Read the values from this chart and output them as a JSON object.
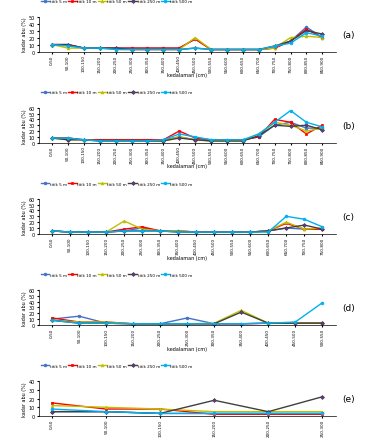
{
  "legend_labels": [
    "titik 5 m",
    "titik 10 m",
    "titik 50 m",
    "titik 250 m",
    "titik 500 m"
  ],
  "line_colors": [
    "#4472C4",
    "#FF0000",
    "#BFBF00",
    "#7030A0",
    "#00B0F0"
  ],
  "markers": [
    "o",
    "s",
    "^",
    "D",
    "o"
  ],
  "xlabel": "kedalaman (cm)",
  "ylabel": "kadar abu (%)",
  "panel_labels": [
    "(a)",
    "(b)",
    "(c)",
    "(d)",
    "(e)"
  ],
  "subplot_a": {
    "x_labels": [
      "0-50",
      "50-100",
      "100-150",
      "150-200",
      "200-250",
      "250-300",
      "300-350",
      "350-400",
      "400-450",
      "450-500",
      "500-550",
      "550-600",
      "600-650",
      "650-700",
      "700-750",
      "750-800",
      "800-850",
      "850-900"
    ],
    "ylim": [
      0,
      50
    ],
    "yticks": [
      0,
      10,
      20,
      30,
      40,
      50
    ],
    "series": {
      "titik5": [
        10,
        10,
        5,
        5,
        5,
        5,
        5,
        5,
        5,
        18,
        3,
        3,
        3,
        3,
        5,
        15,
        35,
        20
      ],
      "titik10": [
        10,
        10,
        5,
        5,
        5,
        5,
        5,
        5,
        5,
        18,
        3,
        3,
        3,
        3,
        5,
        15,
        32,
        20
      ],
      "titik50": [
        10,
        5,
        5,
        5,
        3,
        3,
        3,
        3,
        3,
        20,
        3,
        3,
        3,
        3,
        5,
        20,
        22,
        20
      ],
      "titik250": [
        10,
        10,
        5,
        5,
        5,
        3,
        3,
        3,
        3,
        5,
        3,
        3,
        3,
        3,
        8,
        15,
        30,
        25
      ],
      "titik500": [
        10,
        8,
        5,
        5,
        3,
        3,
        3,
        3,
        3,
        5,
        3,
        3,
        3,
        3,
        8,
        12,
        27,
        22
      ]
    }
  },
  "subplot_b": {
    "x_labels": [
      "0-50",
      "50-100",
      "100-150",
      "150-200",
      "200-250",
      "250-300",
      "300-350",
      "350-400",
      "400-450",
      "450-500",
      "500-550",
      "550-600",
      "600-650",
      "650-700",
      "700-750",
      "750-800",
      "800-850",
      "850-900"
    ],
    "ylim": [
      0,
      60
    ],
    "yticks": [
      0,
      10,
      20,
      30,
      40,
      50,
      60
    ],
    "series": {
      "titik5": [
        8,
        8,
        5,
        5,
        5,
        5,
        5,
        5,
        10,
        5,
        5,
        5,
        5,
        10,
        30,
        35,
        25,
        25
      ],
      "titik10": [
        8,
        8,
        5,
        5,
        5,
        5,
        5,
        5,
        20,
        8,
        5,
        5,
        5,
        10,
        40,
        35,
        15,
        30
      ],
      "titik50": [
        8,
        5,
        5,
        3,
        3,
        3,
        3,
        3,
        10,
        5,
        3,
        3,
        3,
        15,
        35,
        30,
        20,
        25
      ],
      "titik250": [
        8,
        5,
        5,
        3,
        3,
        3,
        3,
        3,
        8,
        5,
        3,
        3,
        3,
        12,
        30,
        28,
        30,
        22
      ],
      "titik500": [
        8,
        8,
        5,
        3,
        3,
        3,
        3,
        5,
        15,
        10,
        5,
        5,
        5,
        15,
        35,
        55,
        35,
        27
      ]
    }
  },
  "subplot_c": {
    "x_labels": [
      "0-50",
      "50-100",
      "100-150",
      "150-200",
      "200-250",
      "250-300",
      "300-350",
      "350-400",
      "400-450",
      "450-500",
      "500-550",
      "550-600",
      "600-650",
      "650-700",
      "700-750",
      "750-800"
    ],
    "ylim": [
      0,
      60
    ],
    "yticks": [
      0,
      10,
      20,
      30,
      40,
      50,
      60
    ],
    "series": {
      "titik5": [
        5,
        3,
        3,
        3,
        5,
        10,
        5,
        5,
        3,
        3,
        3,
        3,
        5,
        10,
        8,
        8
      ],
      "titik10": [
        5,
        3,
        3,
        3,
        8,
        12,
        5,
        5,
        3,
        3,
        3,
        3,
        5,
        18,
        8,
        8
      ],
      "titik50": [
        5,
        3,
        3,
        3,
        22,
        8,
        5,
        5,
        3,
        3,
        3,
        3,
        5,
        20,
        8,
        10
      ],
      "titik250": [
        5,
        3,
        3,
        3,
        5,
        5,
        5,
        3,
        3,
        3,
        3,
        3,
        5,
        10,
        15,
        8
      ],
      "titik500": [
        5,
        3,
        3,
        3,
        5,
        5,
        5,
        3,
        3,
        3,
        3,
        3,
        3,
        30,
        25,
        12
      ]
    }
  },
  "subplot_d": {
    "x_labels": [
      "0-50",
      "50-100",
      "100-150",
      "150-200",
      "200-250",
      "250-300",
      "300-350",
      "350-400",
      "400-450",
      "450-500",
      "500-550"
    ],
    "ylim": [
      0,
      60
    ],
    "yticks": [
      0,
      10,
      20,
      30,
      40,
      50,
      60
    ],
    "series": {
      "titik5": [
        10,
        15,
        3,
        2,
        2,
        12,
        2,
        2,
        3,
        3,
        3
      ],
      "titik10": [
        12,
        5,
        5,
        2,
        2,
        2,
        2,
        2,
        3,
        3,
        3
      ],
      "titik50": [
        8,
        5,
        5,
        2,
        2,
        2,
        3,
        25,
        3,
        3,
        3
      ],
      "titik250": [
        8,
        3,
        3,
        2,
        2,
        2,
        2,
        22,
        3,
        3,
        3
      ],
      "titik500": [
        8,
        3,
        3,
        2,
        2,
        2,
        2,
        2,
        3,
        5,
        38
      ]
    }
  },
  "subplot_e": {
    "x_labels": [
      "0-50",
      "50-100",
      "100-150",
      "150-200",
      "200-250",
      "250-300"
    ],
    "ylim": [
      0,
      40
    ],
    "yticks": [
      0,
      10,
      20,
      30,
      40
    ],
    "series": {
      "titik5": [
        5,
        5,
        3,
        3,
        3,
        3
      ],
      "titik10": [
        15,
        8,
        8,
        2,
        2,
        2
      ],
      "titik50": [
        12,
        10,
        8,
        5,
        5,
        5
      ],
      "titik250": [
        5,
        5,
        3,
        18,
        5,
        22
      ],
      "titik500": [
        8,
        5,
        3,
        3,
        3,
        3
      ]
    }
  }
}
